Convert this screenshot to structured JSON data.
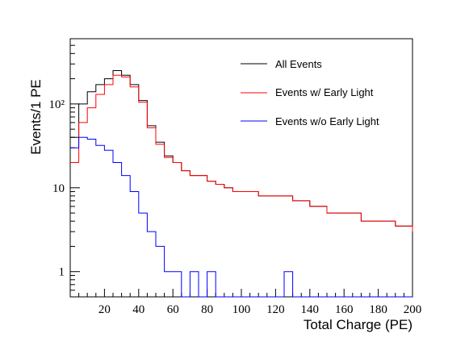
{
  "chart_data": {
    "type": "line",
    "step": true,
    "xlabel": "Total Charge (PE)",
    "ylabel": "Events/1 PE",
    "xlim": [
      0,
      200
    ],
    "ylim": [
      0.5,
      600
    ],
    "yscale": "log",
    "grid": false,
    "legend_position": "top-right",
    "x_ticks": [
      20,
      40,
      60,
      80,
      100,
      120,
      140,
      160,
      180,
      200
    ],
    "x_tick_labels": [
      "20",
      "40",
      "60",
      "80",
      "100",
      "120",
      "140",
      "160",
      "180",
      "200"
    ],
    "y_ticks": [
      1,
      10,
      100
    ],
    "y_tick_labels": [
      "1",
      "10",
      "10²"
    ],
    "series": [
      {
        "name": "All Events",
        "color": "#000000",
        "x": [
          0,
          5,
          10,
          15,
          20,
          25,
          30,
          35,
          40,
          45,
          50,
          55,
          60,
          65,
          70,
          75,
          80,
          85,
          90,
          95,
          100,
          110,
          120,
          130,
          140,
          150,
          160,
          170,
          180,
          190,
          200
        ],
        "values": [
          40,
          100,
          140,
          170,
          200,
          250,
          220,
          170,
          110,
          55,
          35,
          24,
          20,
          16,
          14,
          14,
          12,
          11,
          10,
          9,
          9,
          8,
          8,
          7,
          6,
          5,
          5,
          4,
          4,
          3.5,
          3
        ]
      },
      {
        "name": "Events w/ Early Light",
        "color": "#ff0000",
        "x": [
          0,
          5,
          10,
          15,
          20,
          25,
          30,
          35,
          40,
          45,
          50,
          55,
          60,
          65,
          70,
          75,
          80,
          85,
          90,
          95,
          100,
          110,
          120,
          130,
          140,
          150,
          160,
          170,
          180,
          190,
          200
        ],
        "values": [
          20,
          60,
          90,
          130,
          170,
          220,
          210,
          160,
          105,
          52,
          33,
          23,
          20,
          16,
          14,
          14,
          12,
          11,
          10,
          9,
          9,
          8,
          8,
          7,
          6,
          5,
          5,
          4,
          4,
          3.5,
          3
        ]
      },
      {
        "name": "Events w/o Early Light",
        "color": "#0000ff",
        "x": [
          0,
          5,
          10,
          15,
          20,
          25,
          30,
          35,
          40,
          45,
          50,
          55,
          60,
          65,
          70,
          75,
          80,
          85,
          90,
          100,
          110,
          120,
          125,
          130
        ],
        "values": [
          30,
          40,
          38,
          32,
          28,
          20,
          14,
          9,
          5,
          3,
          2,
          1,
          1,
          0.5,
          1,
          0.5,
          1,
          0.5,
          0.5,
          0.5,
          0.5,
          0.5,
          1,
          0.5
        ]
      }
    ]
  }
}
